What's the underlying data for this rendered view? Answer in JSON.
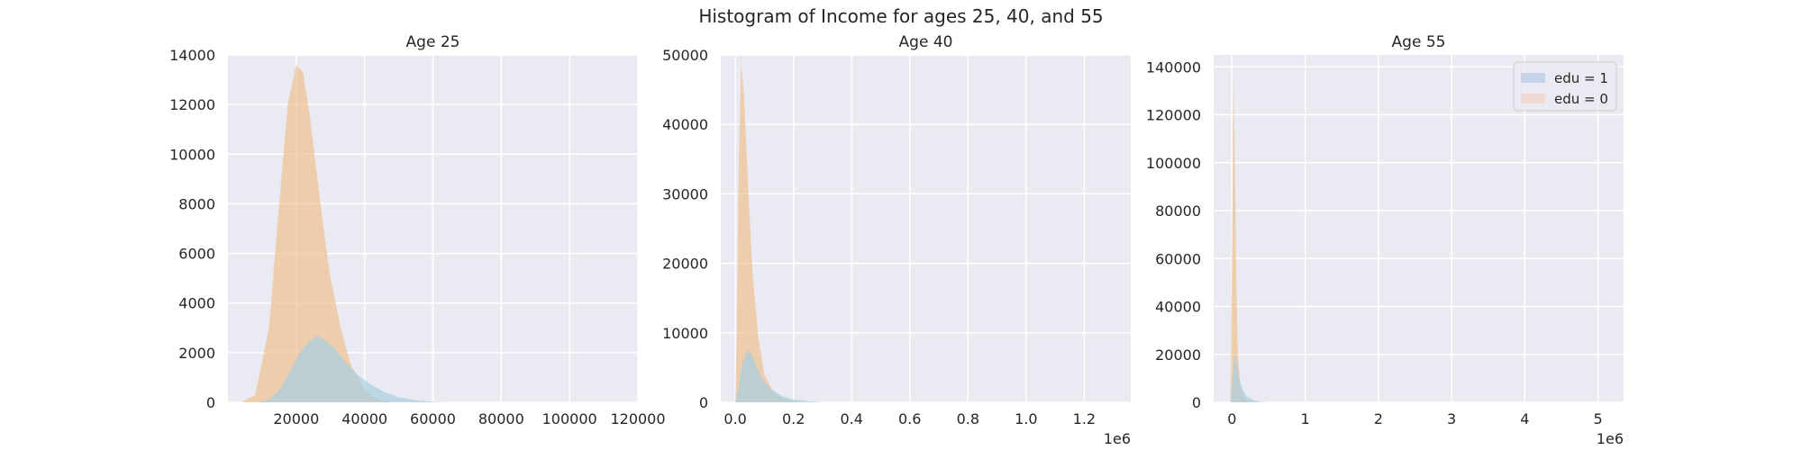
{
  "figure": {
    "title": "Histogram of Income for ages 25, 40, and 55"
  },
  "chart_data": [
    {
      "type": "histogram",
      "title": "Age 25",
      "xlabel": "",
      "ylabel": "",
      "xlim": [
        0,
        120000
      ],
      "ylim": [
        0,
        14000
      ],
      "xticks": [
        20000,
        40000,
        60000,
        80000,
        100000,
        120000
      ],
      "xtick_labels": [
        "20000",
        "40000",
        "60000",
        "80000",
        "100000",
        "120000"
      ],
      "yticks": [
        0,
        2000,
        4000,
        6000,
        8000,
        10000,
        12000,
        14000
      ],
      "ytick_labels": [
        "0",
        "2000",
        "4000",
        "6000",
        "8000",
        "10000",
        "12000",
        "14000"
      ],
      "offset_text": "",
      "grid": true,
      "series": [
        {
          "name": "edu = 0",
          "color": "#f0c090",
          "points": [
            [
              4000,
              0
            ],
            [
              8000,
              300
            ],
            [
              12000,
              3000
            ],
            [
              15000,
              8000
            ],
            [
              17500,
              12000
            ],
            [
              20000,
              13600
            ],
            [
              22000,
              13300
            ],
            [
              24000,
              11500
            ],
            [
              26000,
              9200
            ],
            [
              28000,
              7000
            ],
            [
              30000,
              5000
            ],
            [
              33000,
              3000
            ],
            [
              36000,
              1500
            ],
            [
              40000,
              500
            ],
            [
              44000,
              100
            ],
            [
              48000,
              0
            ]
          ]
        },
        {
          "name": "edu = 1",
          "color": "#a6cfe0",
          "points": [
            [
              8000,
              0
            ],
            [
              12000,
              100
            ],
            [
              15000,
              500
            ],
            [
              18000,
              1200
            ],
            [
              21000,
              2000
            ],
            [
              24000,
              2500
            ],
            [
              26000,
              2650
            ],
            [
              28000,
              2550
            ],
            [
              31000,
              2200
            ],
            [
              34000,
              1700
            ],
            [
              38000,
              1100
            ],
            [
              42000,
              700
            ],
            [
              46000,
              400
            ],
            [
              50000,
              200
            ],
            [
              55000,
              80
            ],
            [
              60000,
              20
            ],
            [
              64000,
              0
            ]
          ]
        }
      ]
    },
    {
      "type": "histogram",
      "title": "Age 40",
      "xlabel": "",
      "ylabel": "",
      "xlim": [
        -0.05,
        1.36
      ],
      "ylim": [
        0,
        50000
      ],
      "xticks": [
        0.0,
        0.2,
        0.4,
        0.6,
        0.8,
        1.0,
        1.2
      ],
      "xtick_labels": [
        "0.0",
        "0.2",
        "0.4",
        "0.6",
        "0.8",
        "1.0",
        "1.2"
      ],
      "yticks": [
        0,
        10000,
        20000,
        30000,
        40000,
        50000
      ],
      "ytick_labels": [
        "0",
        "10000",
        "20000",
        "30000",
        "40000",
        "50000"
      ],
      "offset_text": "1e6",
      "grid": true,
      "series": [
        {
          "name": "edu = 0",
          "color": "#f0c090",
          "points": [
            [
              0.0,
              0
            ],
            [
              0.005,
              10000
            ],
            [
              0.012,
              35000
            ],
            [
              0.02,
              49000
            ],
            [
              0.03,
              44000
            ],
            [
              0.045,
              30000
            ],
            [
              0.06,
              18000
            ],
            [
              0.08,
              9000
            ],
            [
              0.1,
              4000
            ],
            [
              0.13,
              1500
            ],
            [
              0.17,
              400
            ],
            [
              0.22,
              0
            ]
          ]
        },
        {
          "name": "edu = 1",
          "color": "#a6cfe0",
          "points": [
            [
              0.0,
              0
            ],
            [
              0.01,
              2000
            ],
            [
              0.02,
              5000
            ],
            [
              0.04,
              7500
            ],
            [
              0.055,
              7000
            ],
            [
              0.07,
              5500
            ],
            [
              0.09,
              3500
            ],
            [
              0.12,
              2000
            ],
            [
              0.16,
              900
            ],
            [
              0.2,
              400
            ],
            [
              0.25,
              150
            ],
            [
              0.3,
              0
            ]
          ]
        }
      ]
    },
    {
      "type": "histogram",
      "title": "Age 55",
      "xlabel": "",
      "ylabel": "",
      "xlim": [
        -0.25,
        5.35
      ],
      "ylim": [
        0,
        145000
      ],
      "xticks": [
        0,
        1,
        2,
        3,
        4,
        5
      ],
      "xtick_labels": [
        "0",
        "1",
        "2",
        "3",
        "4",
        "5"
      ],
      "yticks": [
        0,
        20000,
        40000,
        60000,
        80000,
        100000,
        120000,
        140000
      ],
      "ytick_labels": [
        "0",
        "20000",
        "40000",
        "60000",
        "80000",
        "100000",
        "120000",
        "140000"
      ],
      "offset_text": "1e6",
      "grid": true,
      "legend": {
        "location": "upper right",
        "entries": [
          {
            "label": "edu = 1",
            "color": "#c5d3e8"
          },
          {
            "label": "edu = 0",
            "color": "#f0d9d4"
          }
        ]
      },
      "series": [
        {
          "name": "edu = 0",
          "color": "#f0c090",
          "points": [
            [
              -0.02,
              0
            ],
            [
              0.0,
              60000
            ],
            [
              0.02,
              138000
            ],
            [
              0.04,
              100000
            ],
            [
              0.06,
              50000
            ],
            [
              0.08,
              20000
            ],
            [
              0.12,
              5000
            ],
            [
              0.18,
              1000
            ],
            [
              0.25,
              0
            ]
          ]
        },
        {
          "name": "edu = 1",
          "color": "#a6cfe0",
          "points": [
            [
              -0.02,
              0
            ],
            [
              0.0,
              8000
            ],
            [
              0.03,
              20000
            ],
            [
              0.06,
              18000
            ],
            [
              0.1,
              10000
            ],
            [
              0.15,
              5000
            ],
            [
              0.2,
              2500
            ],
            [
              0.3,
              800
            ],
            [
              0.4,
              200
            ],
            [
              0.5,
              0
            ]
          ]
        }
      ]
    }
  ]
}
